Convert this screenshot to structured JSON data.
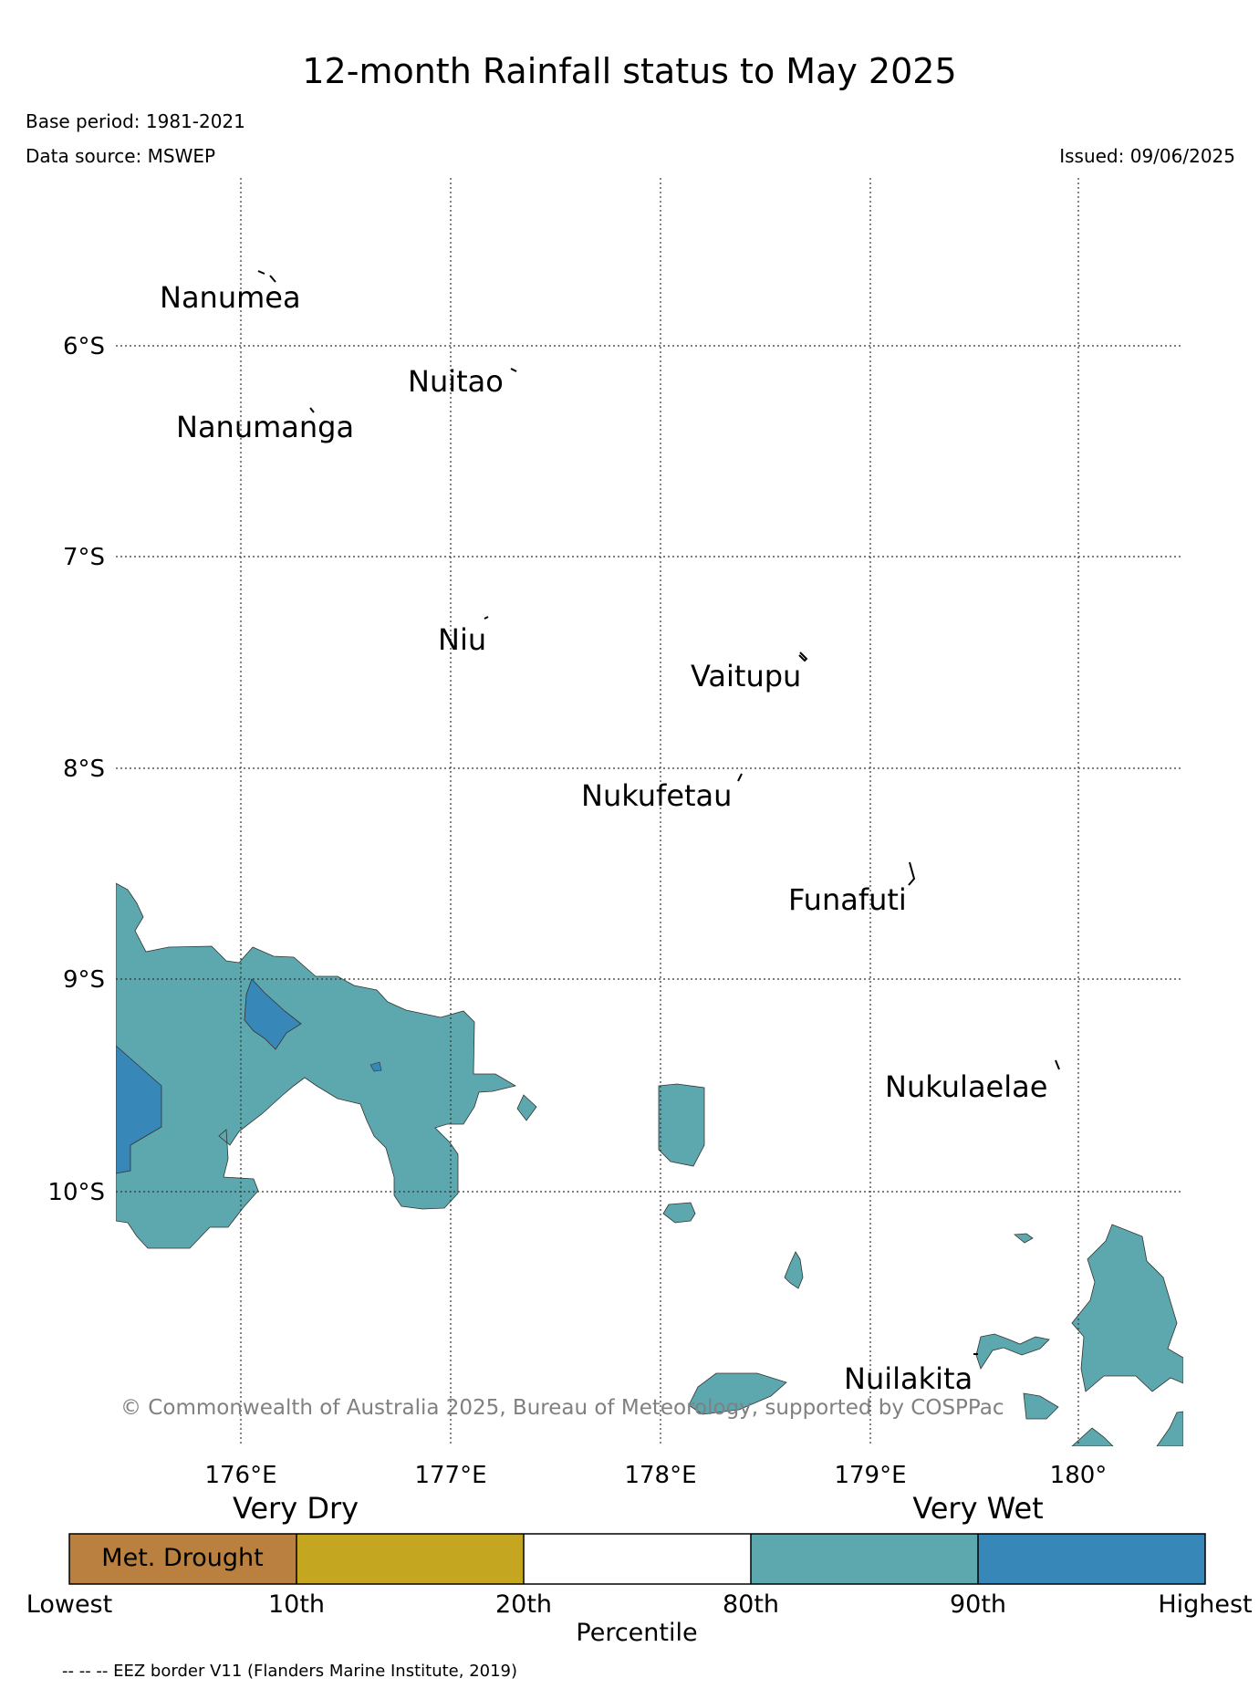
{
  "title": "12-month Rainfall status to May 2025",
  "base_period": "Base period: 1981-2021",
  "data_source": "Data source: MSWEP",
  "issued": "Issued: 09/06/2025",
  "copyright": "© Commonwealth of Australia 2025, Bureau of Meteorology, supported by COSPPac",
  "footnote": "-- -- -- EEZ border V11 (Flanders Marine Institute, 2019)",
  "map": {
    "lat_labels": [
      "6°S",
      "7°S",
      "8°S",
      "9°S",
      "10°S"
    ],
    "lon_labels": [
      "176°E",
      "177°E",
      "178°E",
      "179°E",
      "180°"
    ],
    "islands": [
      "Nanumea",
      "Nuitao",
      "Nanumanga",
      "Niu",
      "Vaitupu",
      "Nukufetau",
      "Funafuti",
      "Nukulaelae",
      "Nuilakita"
    ]
  },
  "legend": {
    "very_dry": "Very Dry",
    "very_wet": "Very Wet",
    "box_label": "Met. Drought",
    "ticks": [
      "Lowest",
      "10th",
      "20th",
      "80th",
      "90th",
      "Highest"
    ],
    "axis_label": "Percentile",
    "colors": [
      "#b98040",
      "#c5a620",
      "#ffffff",
      "#5ca8ae",
      "#3787b8"
    ]
  }
}
